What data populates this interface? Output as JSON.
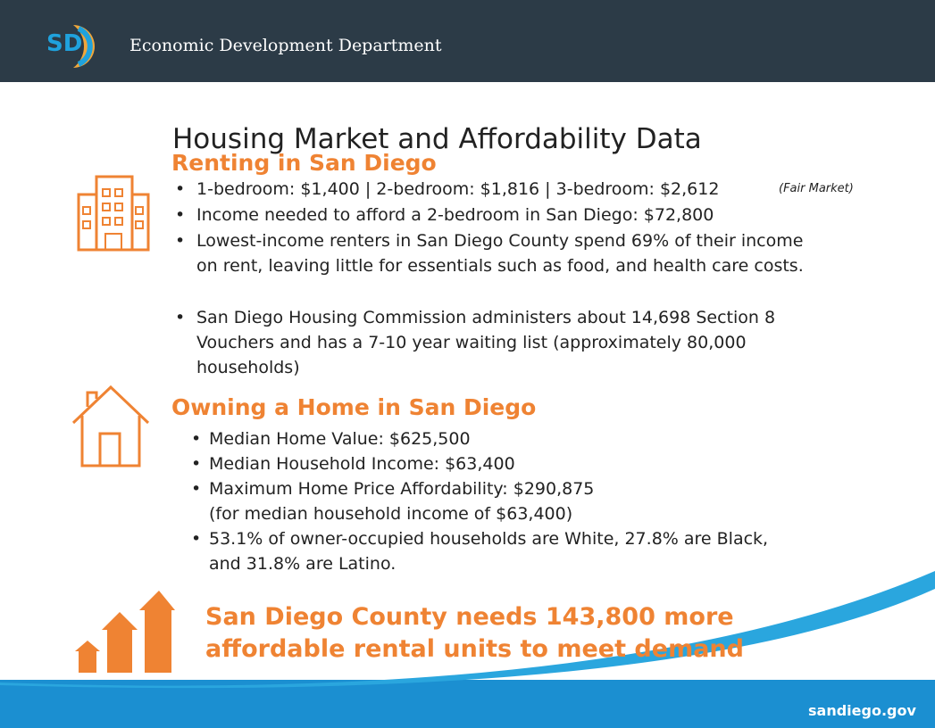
{
  "header": {
    "logo": "SD",
    "org": "Economic Development Department"
  },
  "title": "Housing Market and Affordability Data",
  "renting": {
    "heading": "Renting in San Diego",
    "note": "(Fair Market)",
    "bullets": [
      [
        "1-bedroom: $1,400 | 2-bedroom: $1,816 | 3-bedroom: $2,612"
      ],
      [
        "Income needed to afford a 2-bedroom in San Diego: $72,800"
      ],
      [
        "Lowest-income renters in San Diego County spend 69% of their income",
        "on rent, leaving little for essentials such as food, and health care costs."
      ],
      [
        "San Diego Housing Commission administers about 14,698 Section 8",
        "Vouchers and has a 7-10 year waiting list (approximately 80,000",
        "households)"
      ]
    ]
  },
  "owning": {
    "heading": "Owning a Home in San Diego",
    "bullets": [
      [
        "Median Home Value: $625,500"
      ],
      [
        "Median Household Income: $63,400"
      ],
      [
        "Maximum Home Price Affordability: $290,875",
        "(for median household income of $63,400)"
      ],
      [
        "53.1% of owner-occupied households are White, 27.8% are Black,",
        "and 31.8% are Latino."
      ]
    ]
  },
  "callout": [
    "San Diego County needs 143,800 more",
    "affordable rental units to meet demand"
  ],
  "footer": "sandiego.gov"
}
